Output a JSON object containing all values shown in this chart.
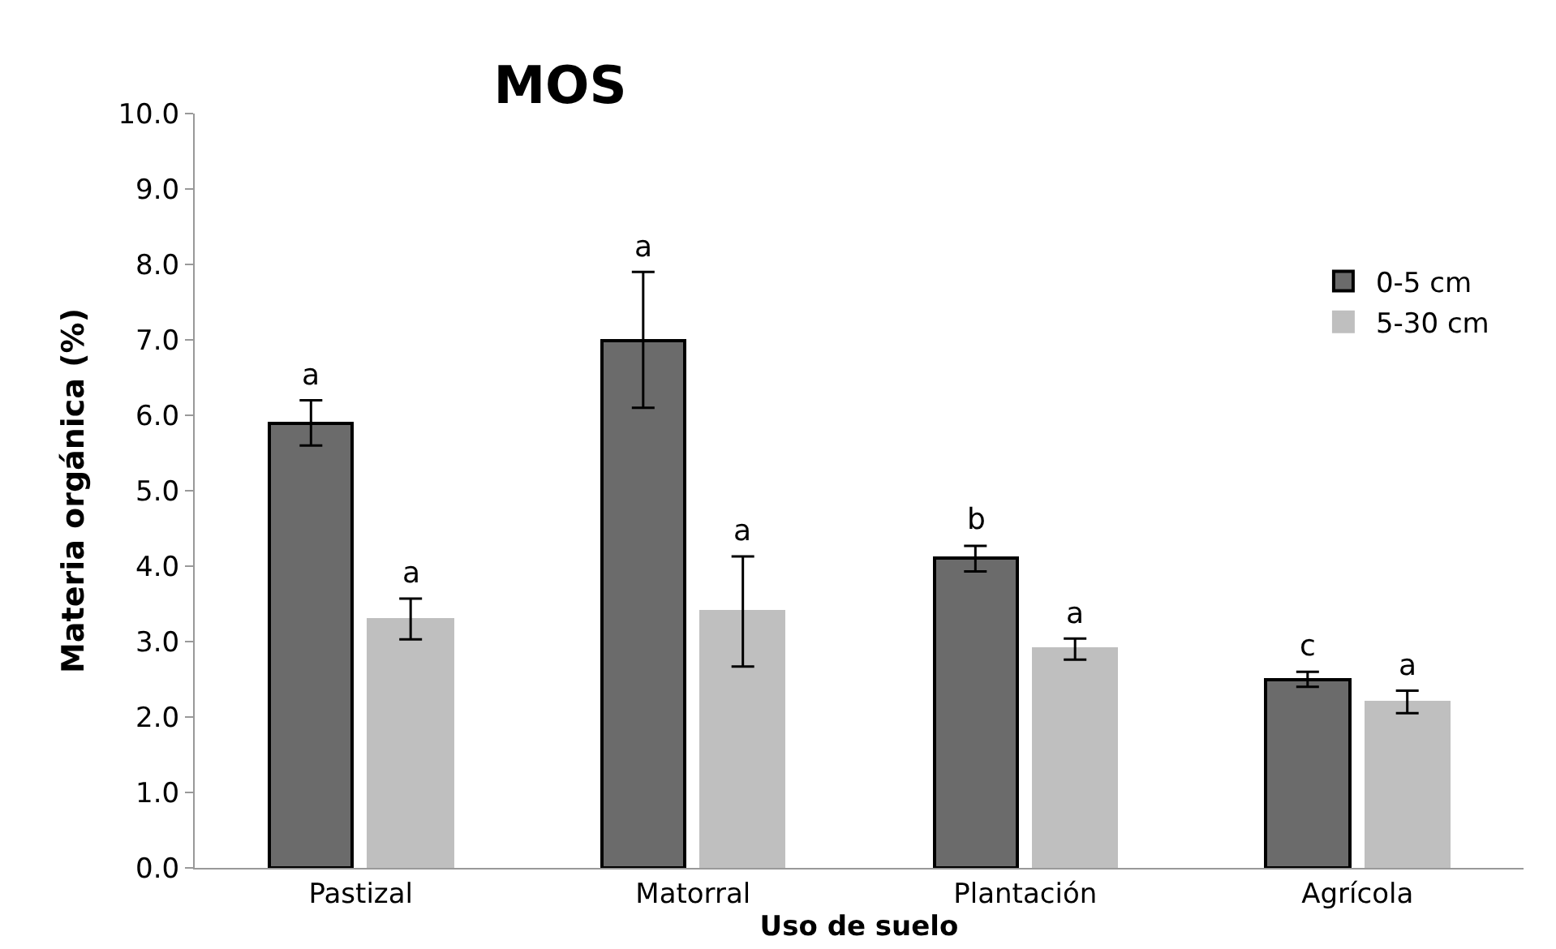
{
  "chart_data": {
    "type": "bar",
    "title": "MOS",
    "xlabel": "Uso de suelo",
    "ylabel": "Materia orgánica (%)",
    "categories": [
      "Pastizal",
      "Matorral",
      "Plantación",
      "Agrícola"
    ],
    "series": [
      {
        "name": "0-5 cm",
        "color": "#6b6b6b",
        "values": [
          5.9,
          7.0,
          4.1,
          2.5
        ],
        "errors": [
          0.3,
          0.9,
          0.17,
          0.1
        ],
        "value_labels": [
          "a",
          "a",
          "b",
          "c"
        ]
      },
      {
        "name": "5-30 cm",
        "color": "#bfbfbf",
        "values": [
          3.3,
          3.4,
          2.9,
          2.2
        ],
        "errors": [
          0.27,
          0.73,
          0.14,
          0.15
        ],
        "value_labels": [
          "a",
          "a",
          "a",
          "a"
        ]
      }
    ],
    "ylim": [
      0,
      10
    ],
    "yticks": [
      {
        "value": 0,
        "label": "0.0"
      },
      {
        "value": 1,
        "label": "1.0"
      },
      {
        "value": 2,
        "label": "2.0"
      },
      {
        "value": 3,
        "label": "3.0"
      },
      {
        "value": 4,
        "label": "4.0"
      },
      {
        "value": 5,
        "label": "5.0"
      },
      {
        "value": 6,
        "label": "6.0"
      },
      {
        "value": 7,
        "label": "7.0"
      },
      {
        "value": 8,
        "label": "8.0"
      },
      {
        "value": 9,
        "label": "9.0"
      },
      {
        "value": 10,
        "label": "10.0"
      }
    ],
    "legend": "right"
  }
}
